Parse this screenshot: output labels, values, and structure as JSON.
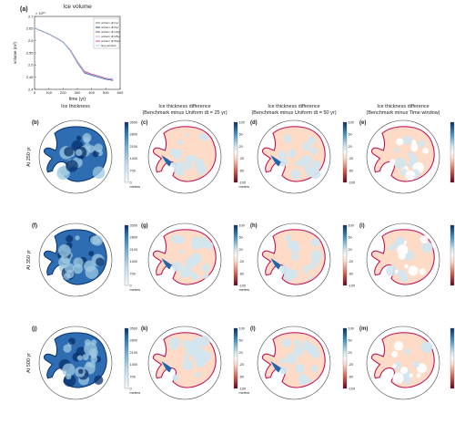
{
  "line_chart": {
    "panel_label": "(a)",
    "title": "Ice volume",
    "exponent_label": "× 10¹⁶",
    "ylabel": "volume (m³)",
    "xlabel": "time (yr)",
    "xticks": [
      "0",
      "100",
      "200",
      "300",
      "400",
      "500",
      "600"
    ],
    "yticks": [
      "2.4",
      "2.45",
      "2.5",
      "2.55",
      "2.6",
      "2.65",
      "2.7"
    ],
    "legend": [
      "uniform dt=1yr",
      "uniform dt=5yr",
      "uniform dt=10yr",
      "uniform dt=25yr",
      "uniform dt=50yr",
      "time window"
    ],
    "colors": [
      "#6b6b6b",
      "#1b3a8c",
      "#6a3d9a",
      "#b5a0d8",
      "#d43a8a",
      "#8fd3e8"
    ]
  },
  "column_headers": [
    [
      "Ice thickness"
    ],
    [
      "Ice thickness difference",
      "(Benchmark minus Uniform dt = 25 yr)"
    ],
    [
      "Ice thickness difference",
      "(Benchmark minus Uniform dt = 50 yr)"
    ],
    [
      "Ice thickness difference",
      "(Benchmark minus Time window)"
    ]
  ],
  "row_labels": [
    "At 250 yr",
    "At 350 yr",
    "At 500 yr"
  ],
  "panel_labels": [
    [
      "(b)",
      "(c)",
      "(d)",
      "(e)"
    ],
    [
      "(f)",
      "(g)",
      "(h)",
      "(i)"
    ],
    [
      "(j)",
      "(k)",
      "(l)",
      "(m)"
    ]
  ],
  "colorbars": [
    {
      "ticks": [
        "3500",
        "2800",
        "2100",
        "1400",
        "700",
        "0"
      ],
      "unit": "meters",
      "type": "seq"
    },
    {
      "ticks": [
        "100",
        "60",
        "20",
        "-20",
        "-60",
        "-100"
      ],
      "unit": "meters",
      "type": "div"
    },
    {
      "ticks": [
        "100",
        "60",
        "20",
        "-20",
        "-60",
        "-100"
      ],
      "unit": "",
      "type": "div"
    },
    {
      "ticks": [
        "50",
        "30",
        "10",
        "-10",
        "-30",
        "-50"
      ],
      "unit": "",
      "type": "div"
    }
  ],
  "colors": {
    "thickness_dark": "#08306b",
    "thickness_light": "#deebf7",
    "diff_pos": "#08306b",
    "diff_neg": "#67001f",
    "diff_near_zero_pos": "#d1e5f0",
    "diff_near_zero_neg": "#fddbc7",
    "outline": "#c2185b"
  },
  "chart_data": {
    "type": "line",
    "title": "Ice volume",
    "xlabel": "time (yr)",
    "ylabel": "volume (m³)",
    "xlim": [
      0,
      600
    ],
    "ylim": [
      2.4,
      2.7
    ],
    "y_multiplier": "1e16",
    "x": [
      0,
      50,
      100,
      150,
      200,
      250,
      300,
      350,
      400,
      450,
      500,
      550
    ],
    "series": [
      {
        "name": "uniform dt=1yr",
        "values": [
          2.652,
          2.64,
          2.628,
          2.612,
          2.595,
          2.56,
          2.51,
          2.468,
          2.458,
          2.45,
          2.442,
          2.437
        ]
      },
      {
        "name": "uniform dt=5yr",
        "values": [
          2.652,
          2.64,
          2.628,
          2.612,
          2.595,
          2.56,
          2.51,
          2.468,
          2.458,
          2.45,
          2.442,
          2.437
        ]
      },
      {
        "name": "uniform dt=10yr",
        "values": [
          2.652,
          2.64,
          2.628,
          2.612,
          2.595,
          2.561,
          2.511,
          2.469,
          2.459,
          2.451,
          2.443,
          2.438
        ]
      },
      {
        "name": "uniform dt=25yr",
        "values": [
          2.652,
          2.64,
          2.628,
          2.612,
          2.595,
          2.562,
          2.513,
          2.471,
          2.461,
          2.453,
          2.445,
          2.44
        ]
      },
      {
        "name": "uniform dt=50yr",
        "values": [
          2.652,
          2.64,
          2.628,
          2.612,
          2.595,
          2.563,
          2.515,
          2.474,
          2.463,
          2.455,
          2.446,
          2.441
        ]
      },
      {
        "name": "time window",
        "values": [
          2.652,
          2.641,
          2.629,
          2.613,
          2.596,
          2.561,
          2.512,
          2.47,
          2.46,
          2.452,
          2.444,
          2.439
        ]
      }
    ],
    "grid": false,
    "legend_position": "top-right"
  }
}
